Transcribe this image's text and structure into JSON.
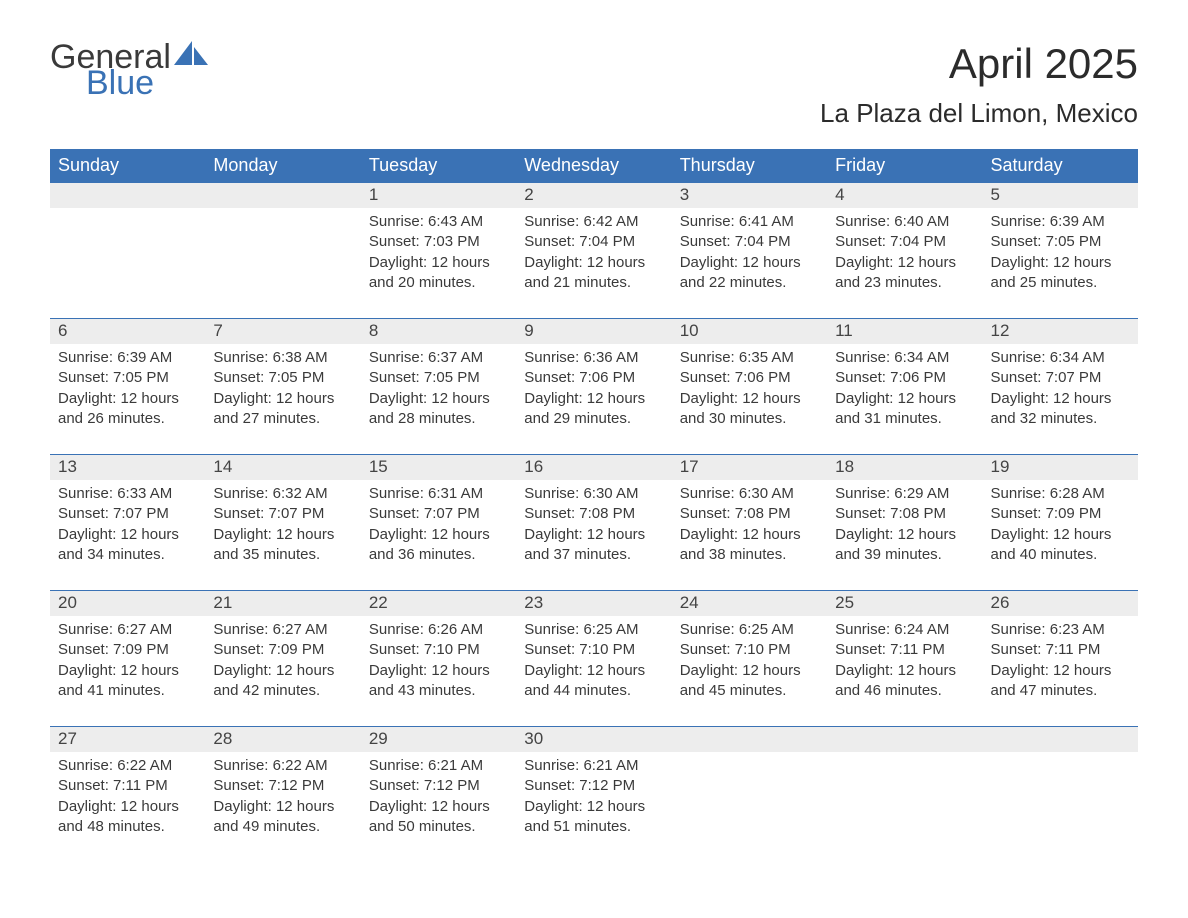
{
  "brand": {
    "word1": "General",
    "word2": "Blue"
  },
  "title": "April 2025",
  "location": "La Plaza del Limon, Mexico",
  "colors": {
    "header_bg": "#3a72b5",
    "header_text": "#ffffff",
    "daynum_bg": "#ededed",
    "daynum_border": "#3a72b5",
    "body_text": "#3a3a3a",
    "page_bg": "#ffffff"
  },
  "weekdays": [
    "Sunday",
    "Monday",
    "Tuesday",
    "Wednesday",
    "Thursday",
    "Friday",
    "Saturday"
  ],
  "weeks": [
    [
      null,
      null,
      {
        "n": "1",
        "sunrise": "6:43 AM",
        "sunset": "7:03 PM",
        "daylight": "12 hours and 20 minutes."
      },
      {
        "n": "2",
        "sunrise": "6:42 AM",
        "sunset": "7:04 PM",
        "daylight": "12 hours and 21 minutes."
      },
      {
        "n": "3",
        "sunrise": "6:41 AM",
        "sunset": "7:04 PM",
        "daylight": "12 hours and 22 minutes."
      },
      {
        "n": "4",
        "sunrise": "6:40 AM",
        "sunset": "7:04 PM",
        "daylight": "12 hours and 23 minutes."
      },
      {
        "n": "5",
        "sunrise": "6:39 AM",
        "sunset": "7:05 PM",
        "daylight": "12 hours and 25 minutes."
      }
    ],
    [
      {
        "n": "6",
        "sunrise": "6:39 AM",
        "sunset": "7:05 PM",
        "daylight": "12 hours and 26 minutes."
      },
      {
        "n": "7",
        "sunrise": "6:38 AM",
        "sunset": "7:05 PM",
        "daylight": "12 hours and 27 minutes."
      },
      {
        "n": "8",
        "sunrise": "6:37 AM",
        "sunset": "7:05 PM",
        "daylight": "12 hours and 28 minutes."
      },
      {
        "n": "9",
        "sunrise": "6:36 AM",
        "sunset": "7:06 PM",
        "daylight": "12 hours and 29 minutes."
      },
      {
        "n": "10",
        "sunrise": "6:35 AM",
        "sunset": "7:06 PM",
        "daylight": "12 hours and 30 minutes."
      },
      {
        "n": "11",
        "sunrise": "6:34 AM",
        "sunset": "7:06 PM",
        "daylight": "12 hours and 31 minutes."
      },
      {
        "n": "12",
        "sunrise": "6:34 AM",
        "sunset": "7:07 PM",
        "daylight": "12 hours and 32 minutes."
      }
    ],
    [
      {
        "n": "13",
        "sunrise": "6:33 AM",
        "sunset": "7:07 PM",
        "daylight": "12 hours and 34 minutes."
      },
      {
        "n": "14",
        "sunrise": "6:32 AM",
        "sunset": "7:07 PM",
        "daylight": "12 hours and 35 minutes."
      },
      {
        "n": "15",
        "sunrise": "6:31 AM",
        "sunset": "7:07 PM",
        "daylight": "12 hours and 36 minutes."
      },
      {
        "n": "16",
        "sunrise": "6:30 AM",
        "sunset": "7:08 PM",
        "daylight": "12 hours and 37 minutes."
      },
      {
        "n": "17",
        "sunrise": "6:30 AM",
        "sunset": "7:08 PM",
        "daylight": "12 hours and 38 minutes."
      },
      {
        "n": "18",
        "sunrise": "6:29 AM",
        "sunset": "7:08 PM",
        "daylight": "12 hours and 39 minutes."
      },
      {
        "n": "19",
        "sunrise": "6:28 AM",
        "sunset": "7:09 PM",
        "daylight": "12 hours and 40 minutes."
      }
    ],
    [
      {
        "n": "20",
        "sunrise": "6:27 AM",
        "sunset": "7:09 PM",
        "daylight": "12 hours and 41 minutes."
      },
      {
        "n": "21",
        "sunrise": "6:27 AM",
        "sunset": "7:09 PM",
        "daylight": "12 hours and 42 minutes."
      },
      {
        "n": "22",
        "sunrise": "6:26 AM",
        "sunset": "7:10 PM",
        "daylight": "12 hours and 43 minutes."
      },
      {
        "n": "23",
        "sunrise": "6:25 AM",
        "sunset": "7:10 PM",
        "daylight": "12 hours and 44 minutes."
      },
      {
        "n": "24",
        "sunrise": "6:25 AM",
        "sunset": "7:10 PM",
        "daylight": "12 hours and 45 minutes."
      },
      {
        "n": "25",
        "sunrise": "6:24 AM",
        "sunset": "7:11 PM",
        "daylight": "12 hours and 46 minutes."
      },
      {
        "n": "26",
        "sunrise": "6:23 AM",
        "sunset": "7:11 PM",
        "daylight": "12 hours and 47 minutes."
      }
    ],
    [
      {
        "n": "27",
        "sunrise": "6:22 AM",
        "sunset": "7:11 PM",
        "daylight": "12 hours and 48 minutes."
      },
      {
        "n": "28",
        "sunrise": "6:22 AM",
        "sunset": "7:12 PM",
        "daylight": "12 hours and 49 minutes."
      },
      {
        "n": "29",
        "sunrise": "6:21 AM",
        "sunset": "7:12 PM",
        "daylight": "12 hours and 50 minutes."
      },
      {
        "n": "30",
        "sunrise": "6:21 AM",
        "sunset": "7:12 PM",
        "daylight": "12 hours and 51 minutes."
      },
      null,
      null,
      null
    ]
  ],
  "labels": {
    "sunrise": "Sunrise: ",
    "sunset": "Sunset: ",
    "daylight": "Daylight: "
  }
}
